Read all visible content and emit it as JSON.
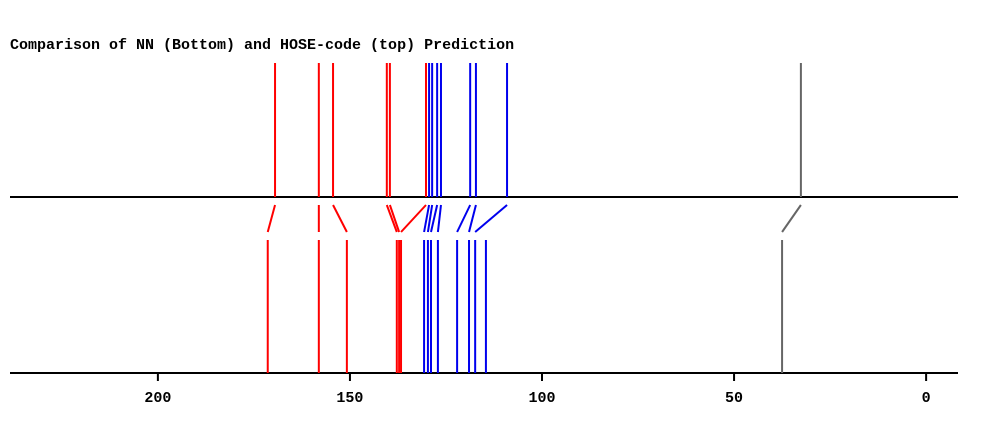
{
  "chart_data": {
    "type": "stick-comparison",
    "title": "Comparison of NN (Bottom) and HOSE-code (top) Prediction",
    "xlim": [
      238.5,
      -8.3
    ],
    "xticks": [
      200,
      150,
      100,
      50,
      0
    ],
    "top": [
      {
        "color": "#ff0000",
        "values": [
          169.5,
          158.1,
          154.4,
          140.4,
          139.6,
          130.2
        ]
      },
      {
        "color": "#0000ee",
        "values": [
          129.4,
          128.6,
          127.3,
          126.3,
          118.7,
          117.2,
          109.1
        ]
      },
      {
        "color": "#666666",
        "values": [
          32.6
        ]
      }
    ],
    "bottom": [
      {
        "color": "#ff0000",
        "values": [
          171.4,
          158.1,
          150.8,
          137.8,
          137.2,
          136.7
        ]
      },
      {
        "color": "#0000ee",
        "values": [
          130.7,
          129.7,
          128.9,
          127.1,
          122.1,
          119.0,
          117.4,
          114.6
        ]
      },
      {
        "color": "#666666",
        "values": [
          37.5
        ]
      }
    ]
  }
}
